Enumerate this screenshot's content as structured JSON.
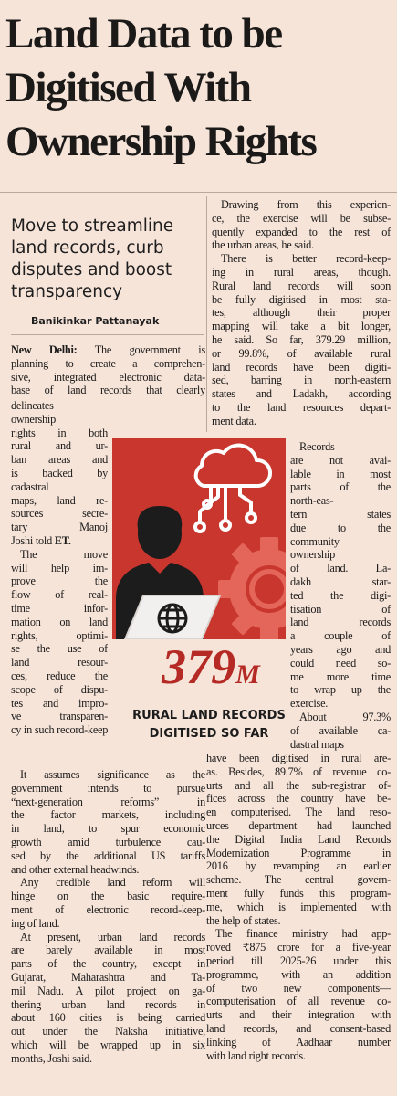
{
  "article": {
    "headline": [
      "Land Data to be",
      "Digitised With",
      "Ownership Rights"
    ],
    "deck": [
      "Move to streamline",
      "land records, curb",
      "disputes and boost",
      "transparency"
    ],
    "byline": "Banikinkar Pattanayak",
    "dateline": "New Delhi:",
    "left_top": [
      " The government is",
      "planning to create a comprehen-",
      "sive, integrated electronic data-",
      "base of land records that clearly"
    ],
    "left_narrow": [
      "delineates",
      "ownership",
      "rights in both",
      "rural and ur-",
      "ban areas and",
      "is backed by",
      "cadastral",
      "maps, land re-",
      "sources secre-",
      "tary Manoj",
      "Joshi told",
      "The move",
      "will help im-",
      "prove the",
      "flow of real-",
      "time infor-",
      "mation on land",
      "rights, optimi-",
      "se the use of",
      "land resour-",
      "ces, reduce the",
      "scope of dispu-",
      "tes and impro-",
      "ve transparen-",
      "cy in such record-keeping."
    ],
    "et": "ET.",
    "left_bottom": [
      "It assumes significance as the",
      "government intends to pursue",
      "“next-generation reforms” in",
      "the factor markets, including",
      "in land, to spur economic",
      "growth amid turbulence cau-",
      "sed by the additional US tariffs",
      "and other external headwinds.",
      "Any credible land reform will",
      "hinge on the basic require-",
      "ment of electronic record-keep-",
      "ing of land.",
      "At present, urban land records",
      "are barely available in most",
      "parts of the country, except in",
      "Gujarat, Maharashtra and Ta-",
      "mil Nadu. A pilot project on ga-",
      "thering urban land records in",
      "about 160 cities is being carried",
      "out under the Naksha initiative,",
      "which will be wrapped up in six",
      "months, Joshi said."
    ],
    "right_top": [
      "Drawing from this experien-",
      "ce, the exercise will be subse-",
      "quently expanded to the rest of",
      "the urban areas, he said.",
      "There is better record-keep-",
      "ing in rural areas, though.",
      "Rural land records will soon",
      "be fully digitised in most sta-",
      "tes, although their proper",
      "mapping will take a bit longer,",
      "he said. So far, 379.29 million,",
      "or 99.8%, of available rural",
      "land records have been digiti-",
      "sed, barring in north-eastern",
      "states and Ladakh, according",
      "to the land resources depart-",
      "ment data."
    ],
    "right_narrow": [
      "Records",
      "are not avai-",
      "lable in most",
      "parts of the",
      "north-eas-",
      "tern states",
      "due to the",
      "community",
      "ownership",
      "of land. La-",
      "dakh star-",
      "ted the digi-",
      "tisation of",
      "land records",
      "a couple of",
      "years ago and",
      "could need so-",
      "me more time",
      "to wrap up the",
      "exercise.",
      "About 97.3%",
      "of available ca-",
      "dastral maps"
    ],
    "right_bottom": [
      "have been digitised in rural are-",
      "as. Besides, 89.7% of revenue co-",
      "urts and all the sub-registrar of-",
      "fices across the country have be-",
      "en computerised. The land reso-",
      "urces department had launched",
      "the Digital India Land Records",
      "Modernization Programme in",
      "2016 by revamping an earlier",
      "scheme. The central govern-",
      "ment fully funds this program-",
      "me, which is implemented with",
      "the help of states.",
      "The finance ministry had app-",
      "roved ₹875 crore for a five-year",
      "period till 2025-26 under this",
      "programme, with an addition",
      "of two new components—",
      "computerisation of all revenue co-",
      "urts and their integration with",
      "land records, and consent-based",
      "linking of Aadhaar number",
      "with land right records."
    ]
  },
  "stat": {
    "number": "379",
    "unit": "M",
    "caption": [
      "RURAL LAND RECORDS",
      "DIGITISED SO FAR"
    ]
  },
  "colors": {
    "background": "#f6e4d9",
    "accent_red": "#c8362e",
    "stat_red": "#b52a25"
  },
  "icons": [
    "cloud-network-icon",
    "person-silhouette-icon",
    "globe-icon",
    "laptop-icon",
    "gear-icon"
  ]
}
